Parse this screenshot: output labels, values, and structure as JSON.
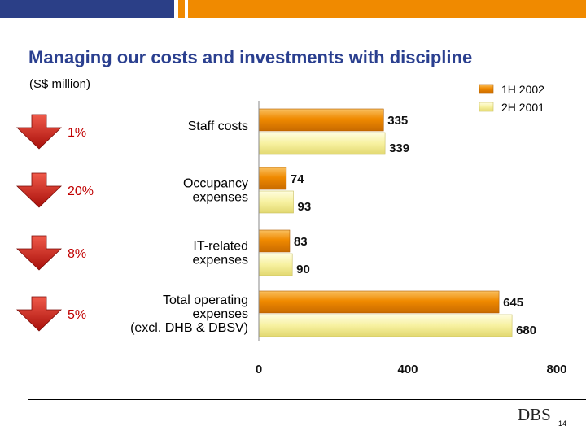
{
  "slide": {
    "title": "Managing our costs and investments with discipline",
    "unit_label": "(S$ million)",
    "logo_text": "DBS",
    "page_number": "14"
  },
  "colors": {
    "bar_1h2002": "#f08a00",
    "bar_2h2001": "#f7f1a0",
    "arrow": "#d41e16",
    "pct_text": "#c00000",
    "topbar_navy": "#2b3f87",
    "topbar_orange": "#f08a00"
  },
  "chart_data": {
    "type": "bar",
    "orientation": "horizontal",
    "categories": [
      "Staff costs",
      "Occupancy expenses",
      "IT-related expenses",
      "Total operating expenses (excl. DHB & DBSV)"
    ],
    "category_lines": [
      [
        "Staff costs"
      ],
      [
        "Occupancy",
        "expenses"
      ],
      [
        "IT-related",
        "expenses"
      ],
      [
        "Total operating",
        "expenses",
        "(excl. DHB & DBSV)"
      ]
    ],
    "series": [
      {
        "name": "1H 2002",
        "values": [
          335,
          74,
          83,
          645
        ]
      },
      {
        "name": "2H 2001",
        "values": [
          339,
          93,
          90,
          680
        ]
      }
    ],
    "change_labels": [
      "1%",
      "20%",
      "8%",
      "5%"
    ],
    "change_direction": "down",
    "xlim": [
      0,
      800
    ],
    "xticks": [
      0,
      400,
      800
    ],
    "grid": false,
    "legend_position": "top-right",
    "data_labels": true
  }
}
